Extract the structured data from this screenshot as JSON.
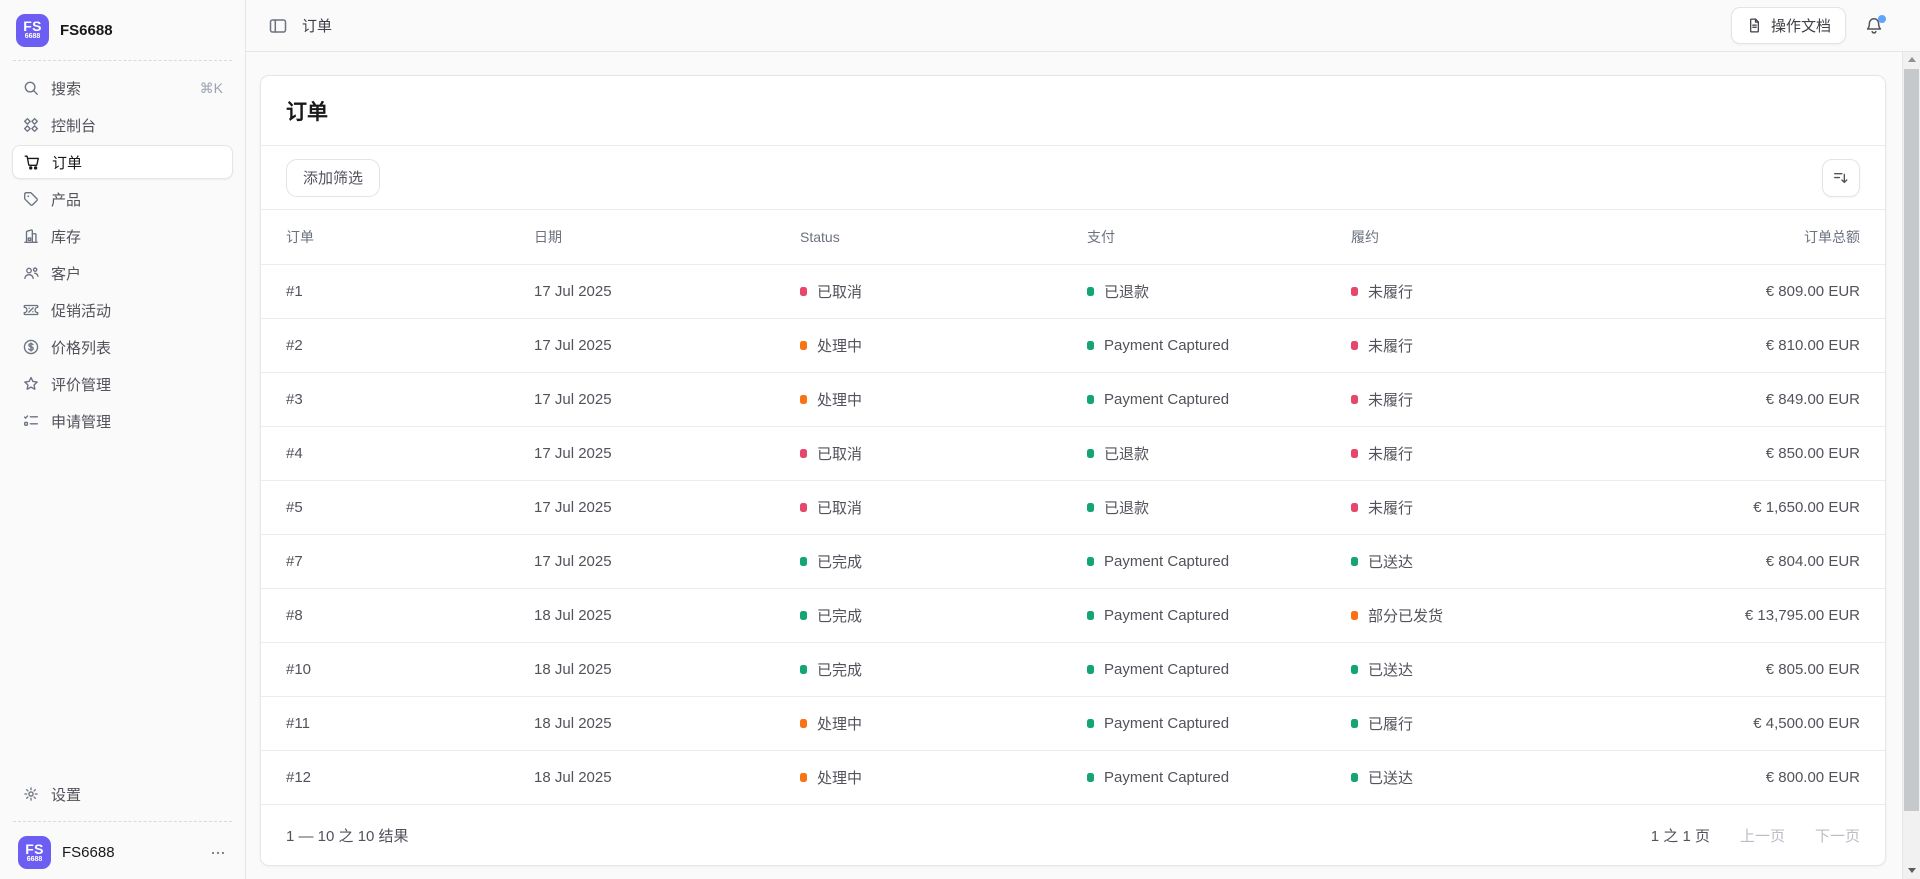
{
  "brand": {
    "name": "FS6688",
    "avatar_text": "FS",
    "avatar_sub": "6688"
  },
  "topbar": {
    "breadcrumb": "订单",
    "toggle_icon": "panel-toggle-icon",
    "docs_button_label": "操作文档",
    "docs_icon": "document-icon",
    "bell_icon": "bell-icon"
  },
  "sidebar": {
    "search_label": "搜索",
    "search_shortcut": "⌘K",
    "search_icon": "search-icon",
    "items": [
      {
        "key": "dashboard",
        "label": "控制台",
        "icon": "dashboard-icon",
        "active": false
      },
      {
        "key": "orders",
        "label": "订单",
        "icon": "orders-icon",
        "active": true
      },
      {
        "key": "products",
        "label": "产品",
        "icon": "products-icon",
        "active": false
      },
      {
        "key": "inventory",
        "label": "库存",
        "icon": "inventory-icon",
        "active": false
      },
      {
        "key": "customers",
        "label": "客户",
        "icon": "customers-icon",
        "active": false
      },
      {
        "key": "promotions",
        "label": "促销活动",
        "icon": "promotions-icon",
        "active": false
      },
      {
        "key": "price-lists",
        "label": "价格列表",
        "icon": "price-lists-icon",
        "active": false
      },
      {
        "key": "reviews",
        "label": "评价管理",
        "icon": "reviews-icon",
        "active": false
      },
      {
        "key": "requests",
        "label": "申请管理",
        "icon": "requests-icon",
        "active": false
      }
    ],
    "settings_label": "设置",
    "settings_icon": "gear-icon",
    "footer_user": "FS6688",
    "footer_menu_icon": "ellipsis-icon"
  },
  "page": {
    "title": "订单",
    "add_filter_label": "添加筛选",
    "sort_icon": "sort-descending-icon",
    "table": {
      "columns": [
        "订单",
        "日期",
        "Status",
        "支付",
        "履约",
        "订单总额"
      ],
      "rows": [
        {
          "id": "#1",
          "date": "17 Jul 2025",
          "status": {
            "label": "已取消",
            "color": "red"
          },
          "payment": {
            "label": "已退款",
            "color": "green"
          },
          "fulfillment": {
            "label": "未履行",
            "color": "red"
          },
          "total": "€ 809.00 EUR"
        },
        {
          "id": "#2",
          "date": "17 Jul 2025",
          "status": {
            "label": "处理中",
            "color": "orange"
          },
          "payment": {
            "label": "Payment Captured",
            "color": "green"
          },
          "fulfillment": {
            "label": "未履行",
            "color": "red"
          },
          "total": "€ 810.00 EUR"
        },
        {
          "id": "#3",
          "date": "17 Jul 2025",
          "status": {
            "label": "处理中",
            "color": "orange"
          },
          "payment": {
            "label": "Payment Captured",
            "color": "green"
          },
          "fulfillment": {
            "label": "未履行",
            "color": "red"
          },
          "total": "€ 849.00 EUR"
        },
        {
          "id": "#4",
          "date": "17 Jul 2025",
          "status": {
            "label": "已取消",
            "color": "red"
          },
          "payment": {
            "label": "已退款",
            "color": "green"
          },
          "fulfillment": {
            "label": "未履行",
            "color": "red"
          },
          "total": "€ 850.00 EUR"
        },
        {
          "id": "#5",
          "date": "17 Jul 2025",
          "status": {
            "label": "已取消",
            "color": "red"
          },
          "payment": {
            "label": "已退款",
            "color": "green"
          },
          "fulfillment": {
            "label": "未履行",
            "color": "red"
          },
          "total": "€ 1,650.00 EUR"
        },
        {
          "id": "#7",
          "date": "17 Jul 2025",
          "status": {
            "label": "已完成",
            "color": "green"
          },
          "payment": {
            "label": "Payment Captured",
            "color": "green"
          },
          "fulfillment": {
            "label": "已送达",
            "color": "green"
          },
          "total": "€ 804.00 EUR"
        },
        {
          "id": "#8",
          "date": "18 Jul 2025",
          "status": {
            "label": "已完成",
            "color": "green"
          },
          "payment": {
            "label": "Payment Captured",
            "color": "green"
          },
          "fulfillment": {
            "label": "部分已发货",
            "color": "orange"
          },
          "total": "€ 13,795.00 EUR"
        },
        {
          "id": "#10",
          "date": "18 Jul 2025",
          "status": {
            "label": "已完成",
            "color": "green"
          },
          "payment": {
            "label": "Payment Captured",
            "color": "green"
          },
          "fulfillment": {
            "label": "已送达",
            "color": "green"
          },
          "total": "€ 805.00 EUR"
        },
        {
          "id": "#11",
          "date": "18 Jul 2025",
          "status": {
            "label": "处理中",
            "color": "orange"
          },
          "payment": {
            "label": "Payment Captured",
            "color": "green"
          },
          "fulfillment": {
            "label": "已履行",
            "color": "green"
          },
          "total": "€ 4,500.00 EUR"
        },
        {
          "id": "#12",
          "date": "18 Jul 2025",
          "status": {
            "label": "处理中",
            "color": "orange"
          },
          "payment": {
            "label": "Payment Captured",
            "color": "green"
          },
          "fulfillment": {
            "label": "已送达",
            "color": "green"
          },
          "total": "€ 800.00 EUR"
        }
      ]
    },
    "pagination": {
      "results_label": "1 — 10 之 10 结果",
      "page_label": "1 之 1 页",
      "prev_label": "上一页",
      "next_label": "下一页"
    }
  },
  "colors": {
    "accent_purple": "#6c5ef3",
    "status_red": "#e5486b",
    "status_green": "#14a573",
    "status_orange": "#f97316",
    "notification_blue": "#60a5fa"
  }
}
